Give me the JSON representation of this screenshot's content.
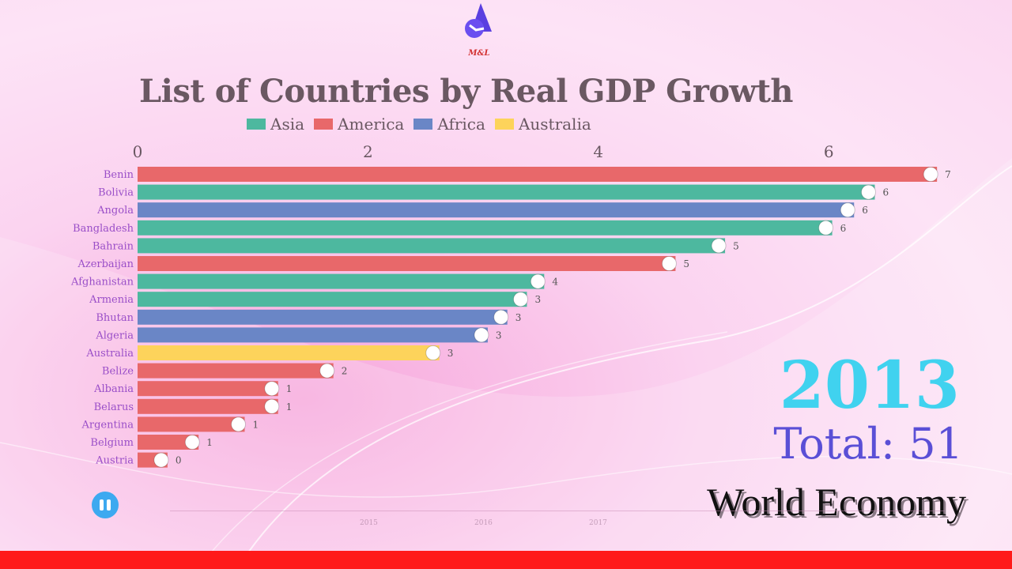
{
  "logo": {
    "text": "M&L"
  },
  "chart_data": {
    "type": "bar",
    "title": "List of Countries by Real GDP Growth",
    "legend": [
      {
        "name": "Asia",
        "color": "#4db89f"
      },
      {
        "name": "America",
        "color": "#e8686a"
      },
      {
        "name": "Africa",
        "color": "#6a86c6"
      },
      {
        "name": "Australia",
        "color": "#fdd35b"
      }
    ],
    "legend_placement": "top",
    "xticks": [
      "0",
      "2",
      "4",
      "6"
    ],
    "xlim": [
      0,
      7
    ],
    "categories": [
      "Benin",
      "Bolivia",
      "Angola",
      "Bangladesh",
      "Bahrain",
      "Azerbaijan",
      "Afghanistan",
      "Armenia",
      "Bhutan",
      "Algeria",
      "Australia",
      "Belize",
      "Albania",
      "Belarus",
      "Argentina",
      "Belgium",
      "Austria"
    ],
    "values": [
      6.94,
      6.4,
      6.22,
      6.03,
      5.1,
      4.67,
      3.53,
      3.38,
      3.21,
      3.04,
      2.62,
      1.7,
      1.22,
      1.22,
      0.93,
      0.53,
      0.26
    ],
    "value_labels": [
      "7",
      "6",
      "6",
      "6",
      "5",
      "5",
      "4",
      "3",
      "3",
      "3",
      "3",
      "2",
      "1",
      "1",
      "1",
      "1",
      "0"
    ],
    "groups": [
      "America",
      "Asia",
      "Africa",
      "Asia",
      "Asia",
      "America",
      "Asia",
      "Asia",
      "Africa",
      "Africa",
      "Australia",
      "America",
      "America",
      "America",
      "America",
      "America",
      "America"
    ]
  },
  "year": "2013",
  "total": "Total: 51",
  "watermark": "World Economy",
  "timeline": {
    "labels": [
      "2015",
      "2016",
      "2017"
    ]
  }
}
